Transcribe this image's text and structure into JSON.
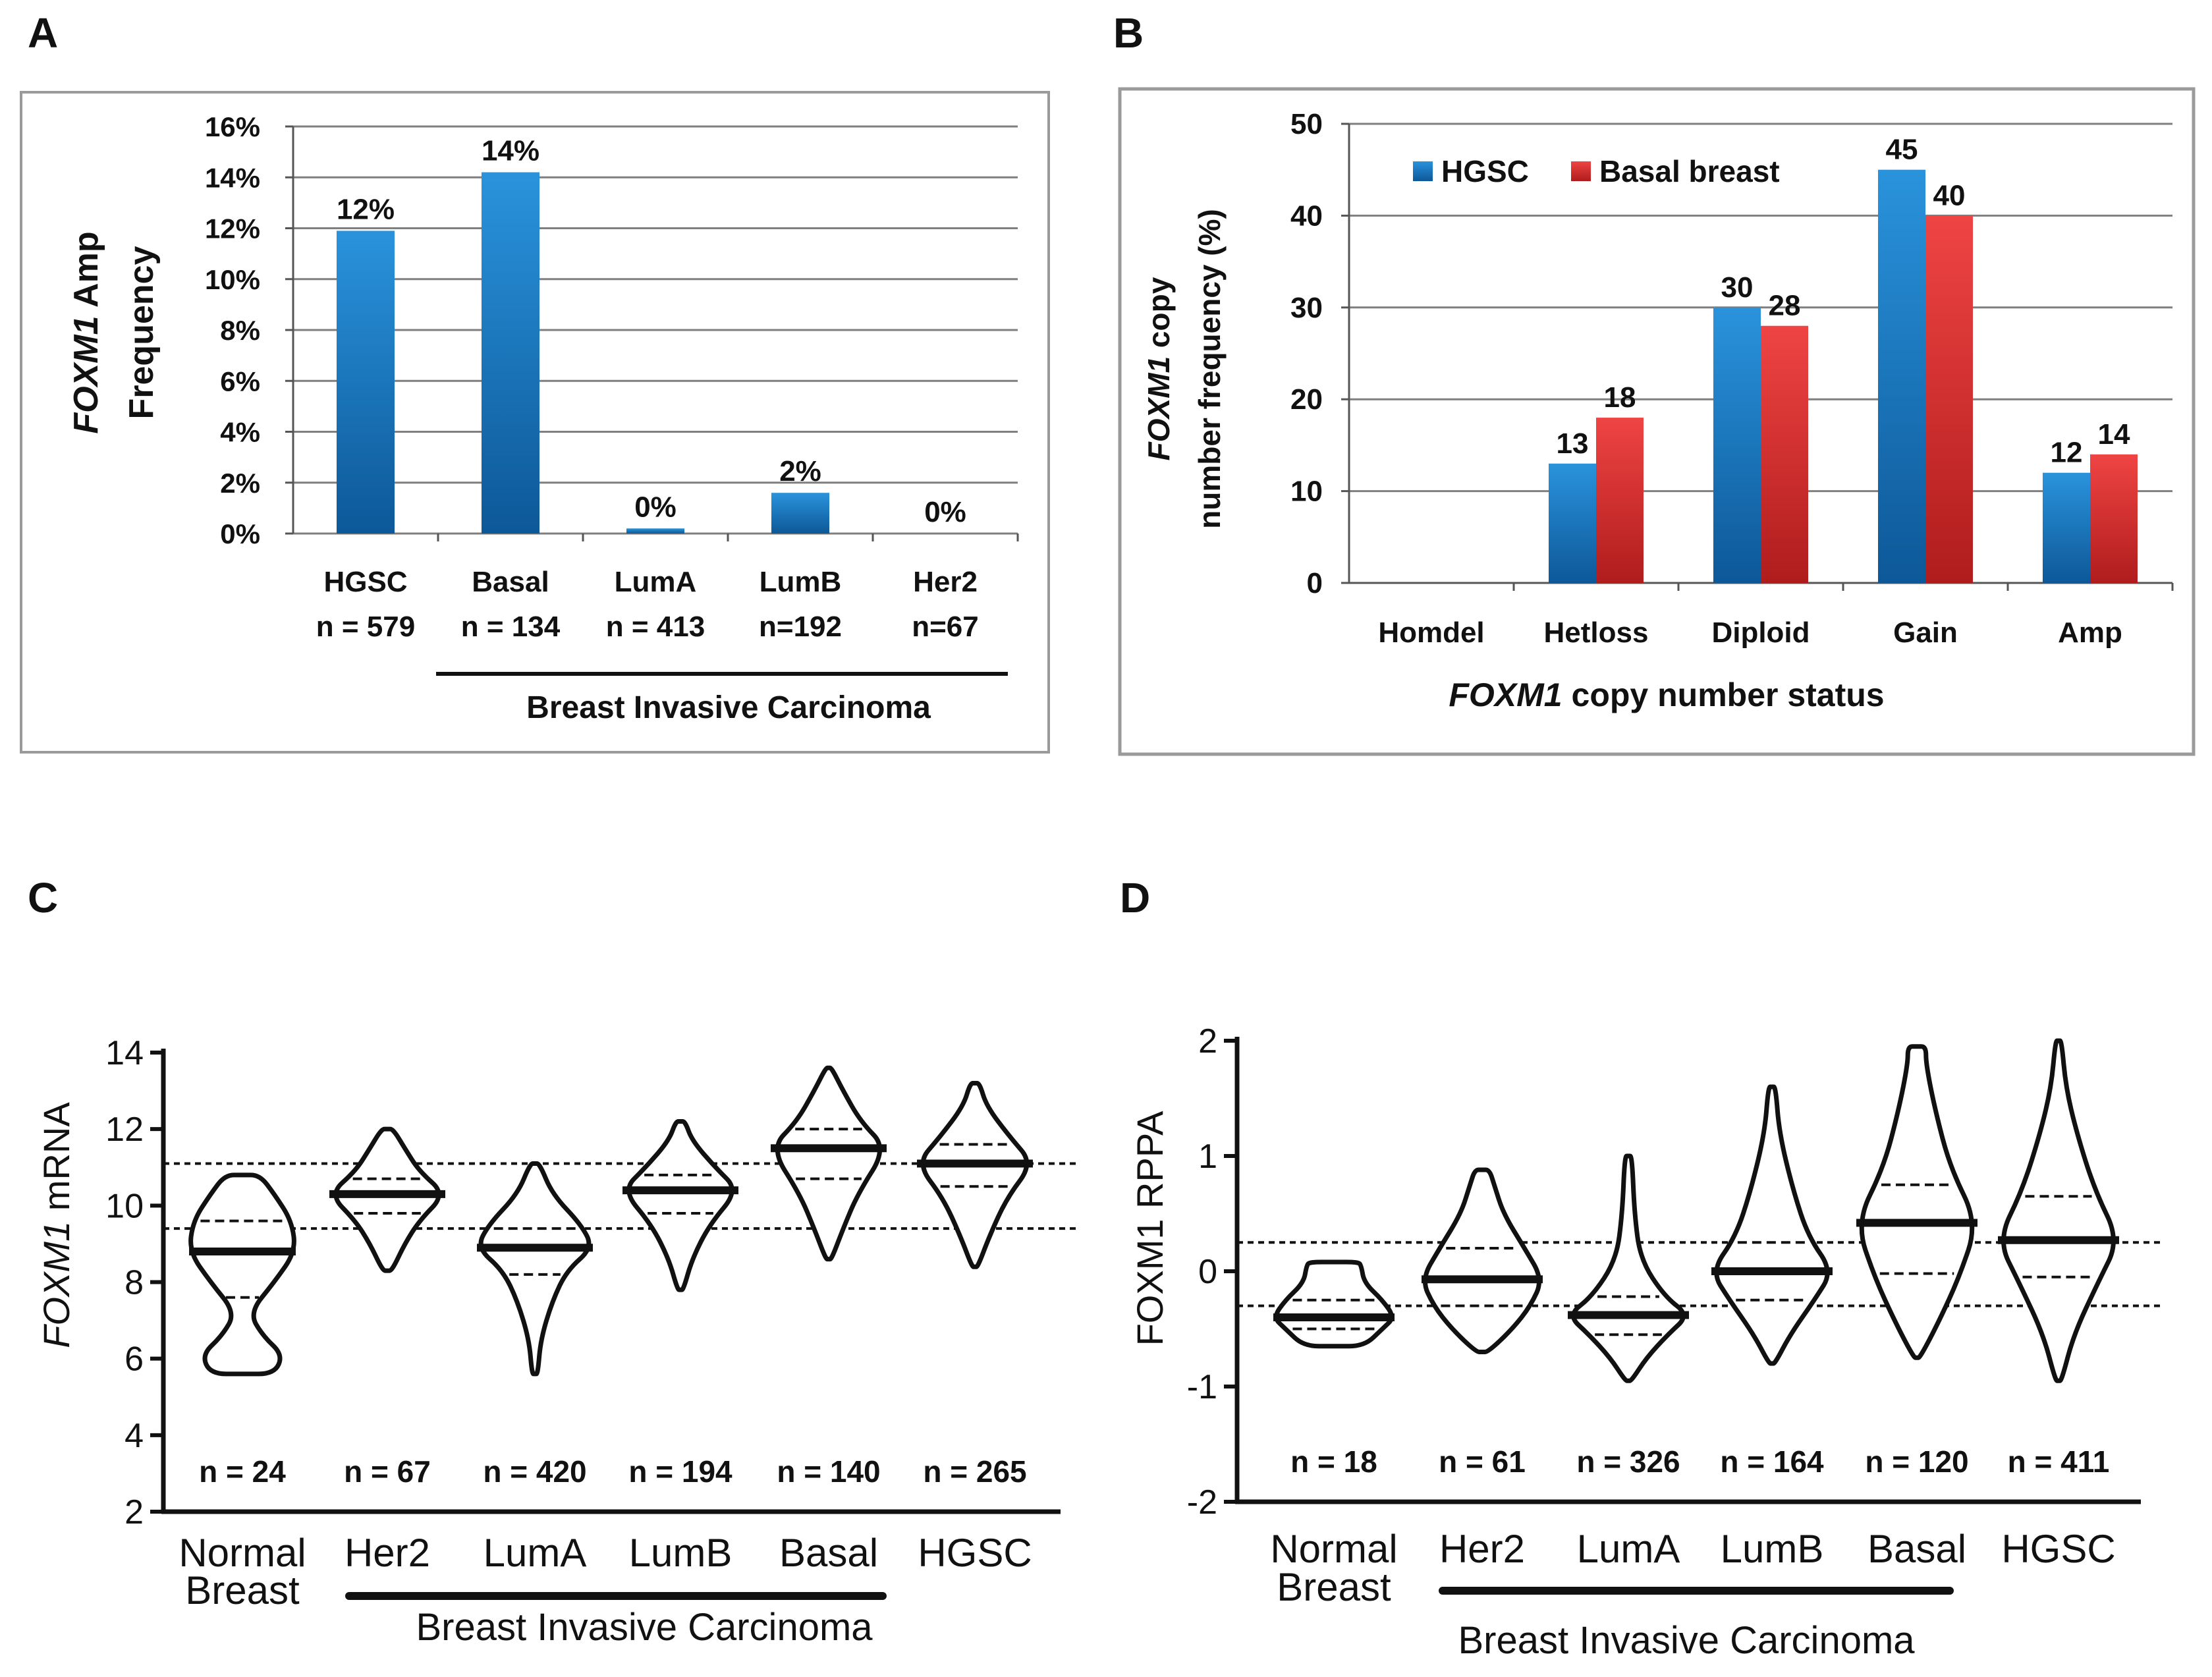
{
  "panels": {
    "a": "A",
    "b": "B",
    "c": "C",
    "d": "D"
  },
  "colors": {
    "blue": "#1f86cf",
    "blue_dark": "#0f5a9c",
    "red": "#e63a3a",
    "red_dark": "#b51f1f",
    "grid": "#7f7f7f",
    "frame": "#9a9a9a"
  },
  "chart_data": [
    {
      "id": "A",
      "type": "bar",
      "ylabel_italic": "FOXM1",
      "ylabel_rest": " Amp",
      "ylabel_line2": "Frequency",
      "ylim": [
        0,
        16
      ],
      "yticks": [
        "0%",
        "2%",
        "4%",
        "6%",
        "8%",
        "10%",
        "12%",
        "14%",
        "16%"
      ],
      "categories": [
        "HGSC",
        "Basal",
        "LumA",
        "LumB",
        "Her2"
      ],
      "n_labels": [
        "n = 579",
        "n = 134",
        "n = 413",
        "n=192",
        "n=67"
      ],
      "values": [
        11.9,
        14.2,
        0.2,
        1.6,
        0
      ],
      "data_labels": [
        "12%",
        "14%",
        "0%",
        "2%",
        "0%"
      ],
      "group_label": "Breast Invasive Carcinoma"
    },
    {
      "id": "B",
      "type": "bar",
      "ylabel_italic": "FOXM1",
      "ylabel_rest": "  copy",
      "ylabel_line2": "number frequency (%)",
      "xlabel_italic": "FOXM1",
      "xlabel_rest": " copy number status",
      "ylim": [
        0,
        50
      ],
      "yticks": [
        "0",
        "10",
        "20",
        "30",
        "40",
        "50"
      ],
      "categories": [
        "Homdel",
        "Hetloss",
        "Diploid",
        "Gain",
        "Amp"
      ],
      "series": [
        {
          "name": "HGSC",
          "values": [
            0,
            13,
            30,
            45,
            12
          ],
          "labels": [
            "",
            "13",
            "30",
            "45",
            "12"
          ]
        },
        {
          "name": "Basal breast",
          "values": [
            0,
            18,
            28,
            40,
            14
          ],
          "labels": [
            "",
            "18",
            "28",
            "40",
            "14"
          ]
        }
      ]
    },
    {
      "id": "C",
      "type": "violin",
      "ylabel_italic": "FOXM1",
      "ylabel_rest": " mRNA",
      "ylim": [
        2,
        14
      ],
      "yticks": [
        "2",
        "4",
        "6",
        "8",
        "10",
        "12",
        "14"
      ],
      "categories": [
        "Normal",
        "Her2",
        "LumA",
        "LumB",
        "Basal",
        "HGSC"
      ],
      "category_line2": [
        "Breast",
        "",
        "",
        "",
        "",
        ""
      ],
      "n_labels": [
        "n = 24",
        "n = 67",
        "n = 420",
        "n = 194",
        "n = 140",
        "n = 265"
      ],
      "reference_lines": [
        9.4,
        11.1
      ],
      "group_label": "Breast Invasive Carcinoma",
      "violins": [
        {
          "median": 8.8,
          "q1": 7.6,
          "q3": 9.6,
          "profile": [
            [
              5.6,
              0.55
            ],
            [
              6.1,
              0.7
            ],
            [
              6.6,
              0.35
            ],
            [
              7.2,
              0.12
            ],
            [
              8.0,
              0.55
            ],
            [
              8.8,
              0.92
            ],
            [
              9.6,
              0.85
            ],
            [
              10.3,
              0.55
            ],
            [
              10.8,
              0.3
            ]
          ]
        },
        {
          "median": 10.3,
          "q1": 9.8,
          "q3": 10.7,
          "profile": [
            [
              8.3,
              0.08
            ],
            [
              9.0,
              0.3
            ],
            [
              9.6,
              0.55
            ],
            [
              10.3,
              1.0
            ],
            [
              10.9,
              0.55
            ],
            [
              11.5,
              0.3
            ],
            [
              12.0,
              0.1
            ]
          ]
        },
        {
          "median": 8.9,
          "q1": 8.2,
          "q3": 9.4,
          "profile": [
            [
              5.6,
              0.05
            ],
            [
              6.5,
              0.1
            ],
            [
              7.5,
              0.3
            ],
            [
              8.3,
              0.55
            ],
            [
              8.9,
              1.0
            ],
            [
              9.5,
              0.8
            ],
            [
              10.3,
              0.3
            ],
            [
              11.1,
              0.08
            ]
          ]
        },
        {
          "median": 10.4,
          "q1": 9.8,
          "q3": 10.8,
          "profile": [
            [
              7.8,
              0.05
            ],
            [
              8.6,
              0.2
            ],
            [
              9.5,
              0.5
            ],
            [
              10.4,
              1.0
            ],
            [
              11.0,
              0.6
            ],
            [
              11.7,
              0.2
            ],
            [
              12.2,
              0.08
            ]
          ]
        },
        {
          "median": 11.5,
          "q1": 10.7,
          "q3": 12.0,
          "profile": [
            [
              8.6,
              0.05
            ],
            [
              9.4,
              0.25
            ],
            [
              10.3,
              0.5
            ],
            [
              11.5,
              1.0
            ],
            [
              12.2,
              0.55
            ],
            [
              13.0,
              0.25
            ],
            [
              13.6,
              0.05
            ]
          ]
        },
        {
          "median": 11.1,
          "q1": 10.5,
          "q3": 11.6,
          "profile": [
            [
              8.4,
              0.05
            ],
            [
              9.2,
              0.25
            ],
            [
              10.2,
              0.55
            ],
            [
              11.1,
              1.0
            ],
            [
              11.8,
              0.6
            ],
            [
              12.6,
              0.2
            ],
            [
              13.2,
              0.08
            ]
          ]
        }
      ]
    },
    {
      "id": "D",
      "type": "violin",
      "ylabel": "FOXM1 RPPA",
      "ylim": [
        -2,
        2
      ],
      "yticks": [
        "-2",
        "-1",
        "0",
        "1",
        "2"
      ],
      "categories": [
        "Normal",
        "Her2",
        "LumA",
        "LumB",
        "Basal",
        "HGSC"
      ],
      "category_line2": [
        "Breast",
        "",
        "",
        "",
        "",
        ""
      ],
      "n_labels": [
        "n = 18",
        "n = 61",
        "n = 326",
        "n = 164",
        "n = 120",
        "n = 411"
      ],
      "reference_lines": [
        -0.3,
        0.25
      ],
      "group_label": "Breast Invasive Carcinoma",
      "violins": [
        {
          "median": -0.4,
          "q1": -0.5,
          "q3": -0.25,
          "profile": [
            [
              -0.65,
              0.5
            ],
            [
              -0.5,
              0.8
            ],
            [
              -0.4,
              1.0
            ],
            [
              -0.25,
              0.8
            ],
            [
              -0.1,
              0.5
            ],
            [
              0.05,
              0.45
            ],
            [
              0.08,
              0.4
            ]
          ]
        },
        {
          "median": -0.07,
          "q1": -0.3,
          "q3": 0.2,
          "profile": [
            [
              -0.7,
              0.1
            ],
            [
              -0.5,
              0.5
            ],
            [
              -0.3,
              0.8
            ],
            [
              -0.07,
              1.0
            ],
            [
              0.2,
              0.7
            ],
            [
              0.5,
              0.35
            ],
            [
              0.75,
              0.2
            ],
            [
              0.88,
              0.12
            ]
          ]
        },
        {
          "median": -0.38,
          "q1": -0.55,
          "q3": -0.22,
          "profile": [
            [
              -0.95,
              0.05
            ],
            [
              -0.75,
              0.3
            ],
            [
              -0.55,
              0.65
            ],
            [
              -0.38,
              1.0
            ],
            [
              -0.22,
              0.6
            ],
            [
              0.1,
              0.2
            ],
            [
              0.5,
              0.1
            ],
            [
              1.0,
              0.06
            ]
          ]
        },
        {
          "median": 0.0,
          "q1": -0.25,
          "q3": 0.25,
          "profile": [
            [
              -0.8,
              0.05
            ],
            [
              -0.55,
              0.3
            ],
            [
              -0.25,
              0.7
            ],
            [
              0.0,
              1.0
            ],
            [
              0.3,
              0.6
            ],
            [
              0.7,
              0.35
            ],
            [
              1.2,
              0.12
            ],
            [
              1.6,
              0.06
            ]
          ]
        },
        {
          "median": 0.42,
          "q1": -0.02,
          "q3": 0.75,
          "profile": [
            [
              -0.75,
              0.05
            ],
            [
              -0.45,
              0.35
            ],
            [
              -0.05,
              0.7
            ],
            [
              0.42,
              1.0
            ],
            [
              0.9,
              0.55
            ],
            [
              1.4,
              0.3
            ],
            [
              1.8,
              0.15
            ],
            [
              1.95,
              0.15
            ]
          ]
        },
        {
          "median": 0.27,
          "q1": -0.05,
          "q3": 0.65,
          "profile": [
            [
              -0.95,
              0.05
            ],
            [
              -0.55,
              0.25
            ],
            [
              -0.1,
              0.65
            ],
            [
              0.27,
              1.0
            ],
            [
              0.7,
              0.6
            ],
            [
              1.2,
              0.3
            ],
            [
              1.6,
              0.12
            ],
            [
              2.0,
              0.05
            ]
          ]
        }
      ]
    }
  ]
}
